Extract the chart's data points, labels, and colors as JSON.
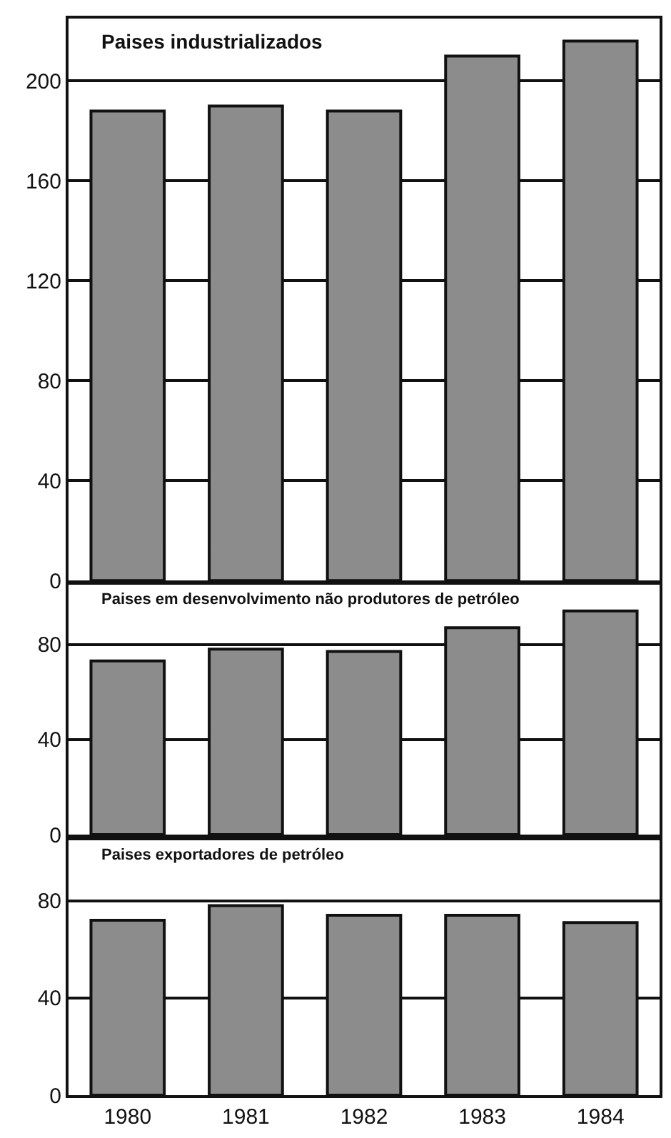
{
  "chart_data": [
    {
      "type": "bar",
      "title": "Paises industrializados",
      "categories": [
        "1980",
        "1981",
        "1982",
        "1983",
        "1984"
      ],
      "values": [
        188,
        190,
        188,
        210,
        216
      ],
      "color": "#8c8c8c",
      "ylim": [
        0,
        225
      ],
      "yticks": [
        0,
        40,
        80,
        120,
        160,
        200
      ],
      "grid": "y",
      "tick_labels": "y"
    },
    {
      "type": "bar",
      "title": "Paises em desenvolvimento não produtores de petróleo",
      "categories": [
        "1980",
        "1981",
        "1982",
        "1983",
        "1984"
      ],
      "values": [
        73,
        78,
        77,
        87,
        94
      ],
      "color": "#8c8c8c",
      "ylim": [
        0,
        105
      ],
      "yticks": [
        0,
        40,
        80
      ],
      "grid": "y",
      "tick_labels": "y"
    },
    {
      "type": "bar",
      "title": "Paises exportadores de petróleo",
      "categories": [
        "1980",
        "1981",
        "1982",
        "1983",
        "1984"
      ],
      "values": [
        72,
        78,
        74,
        74,
        71
      ],
      "color": "#8c8c8c",
      "ylim": [
        0,
        105
      ],
      "yticks": [
        0,
        40,
        80
      ],
      "grid": "y"
    }
  ]
}
